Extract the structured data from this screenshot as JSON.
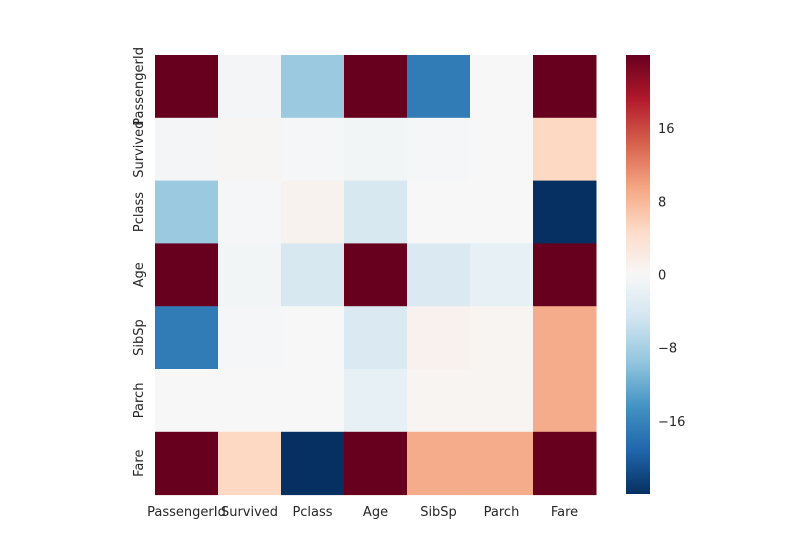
{
  "chart_data": {
    "type": "heatmap",
    "title": "",
    "xlabel": "",
    "ylabel": "",
    "x_categories": [
      "PassengerId",
      "Survived",
      "Pclass",
      "Age",
      "SibSp",
      "Parch",
      "Fare"
    ],
    "y_categories": [
      "PassengerId",
      "Survived",
      "Pclass",
      "Age",
      "SibSp",
      "Parch",
      "Fare"
    ],
    "values": [
      [
        24,
        -0.5,
        -9,
        24,
        -17,
        0,
        24
      ],
      [
        -0.5,
        0.3,
        -0.2,
        -0.6,
        -0.2,
        0,
        5
      ],
      [
        -9,
        -0.2,
        0.8,
        -4,
        0,
        0,
        -24
      ],
      [
        24,
        -0.6,
        -4,
        24,
        -3.5,
        -2,
        24
      ],
      [
        -17,
        -0.2,
        0,
        -3.5,
        1,
        0.5,
        9
      ],
      [
        0,
        0,
        0,
        -2,
        0.5,
        0.5,
        9
      ],
      [
        24,
        5,
        -24,
        24,
        9,
        9,
        24
      ]
    ],
    "color_range": [
      -24,
      24
    ],
    "colormap": "RdBu_r",
    "colorbar_ticks": [
      {
        "value": 16,
        "label": "16"
      },
      {
        "value": 8,
        "label": "8"
      },
      {
        "value": 0,
        "label": "0"
      },
      {
        "value": -8,
        "label": "−8"
      },
      {
        "value": -16,
        "label": "−16"
      }
    ],
    "grid": false
  }
}
